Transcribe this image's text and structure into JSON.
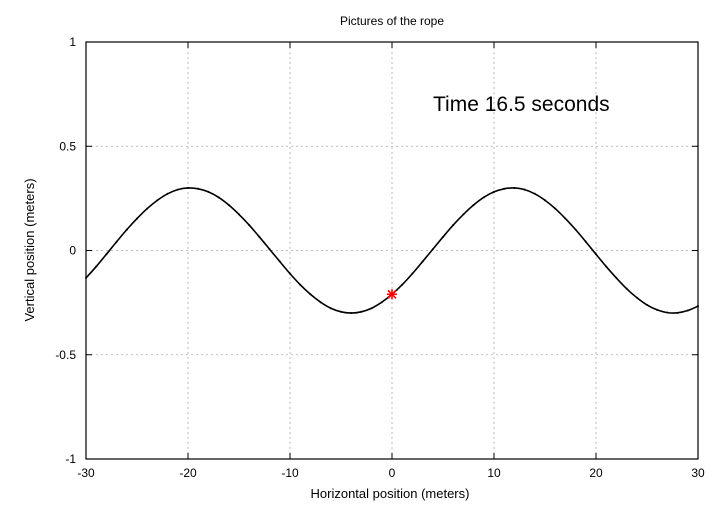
{
  "chart_data": {
    "type": "line",
    "title": "Pictures of the rope",
    "xlabel": "Horizontal position (meters)",
    "ylabel": "Vertical position (meters)",
    "xlim": [
      -30,
      30
    ],
    "ylim": [
      -1,
      1
    ],
    "xticks": [
      -30,
      -20,
      -10,
      0,
      10,
      20,
      30
    ],
    "yticks": [
      -1,
      -0.5,
      0,
      0.5,
      1
    ],
    "xtick_labels": [
      "-30",
      "-20",
      "-10",
      "0",
      "10",
      "20",
      "30"
    ],
    "ytick_labels": [
      "-1",
      "-0.5",
      "0",
      "0.5",
      "1"
    ],
    "grid": true,
    "annotation": "Time 16.5 seconds",
    "series": [
      {
        "color": "#000000",
        "x": [
          -30,
          -29,
          -28,
          -27,
          -26,
          -25,
          -24,
          -23,
          -22,
          -21,
          -20,
          -19,
          -18,
          -17,
          -16,
          -15,
          -14,
          -13,
          -12,
          -11,
          -10,
          -9,
          -8,
          -7,
          -6,
          -5,
          -4,
          -3,
          -2,
          -1,
          0,
          1,
          2,
          3,
          4,
          5,
          6,
          7,
          8,
          9,
          10,
          11,
          12,
          13,
          14,
          15,
          16,
          17,
          18,
          19,
          20,
          21,
          22,
          23,
          24,
          25,
          26,
          27,
          28,
          29,
          30
        ],
        "y": [
          -0.132,
          -0.077,
          -0.018,
          0.042,
          0.1,
          0.153,
          0.201,
          0.241,
          0.272,
          0.292,
          0.3,
          0.296,
          0.281,
          0.255,
          0.218,
          0.173,
          0.122,
          0.065,
          0.006,
          -0.053,
          -0.111,
          -0.164,
          -0.21,
          -0.248,
          -0.277,
          -0.294,
          -0.3,
          -0.294,
          -0.277,
          -0.248,
          -0.21,
          -0.164,
          -0.111,
          -0.053,
          0.006,
          0.065,
          0.122,
          0.173,
          0.218,
          0.255,
          0.281,
          0.296,
          0.3,
          0.292,
          0.272,
          0.241,
          0.201,
          0.153,
          0.1,
          0.042,
          -0.018,
          -0.077,
          -0.132,
          -0.183,
          -0.226,
          -0.261,
          -0.285,
          -0.298,
          -0.299,
          -0.288,
          -0.267
        ]
      }
    ],
    "marker": {
      "x": 0,
      "y": -0.21,
      "color": "#ff0000",
      "symbol": "asterisk"
    }
  }
}
